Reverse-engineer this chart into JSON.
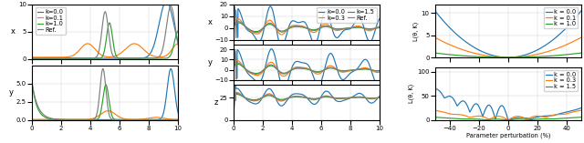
{
  "fig_width": 6.4,
  "fig_height": 1.57,
  "dpi": 100,
  "p1_colors": [
    "#1f77b4",
    "#ff7f0e",
    "#2ca02c",
    "#7f7f7f"
  ],
  "p2_colors": [
    "#1f77b4",
    "#ff7f0e",
    "#2ca02c",
    "#7f7f7f"
  ],
  "p3_colors": [
    "#1f77b4",
    "#ff7f0e",
    "#2ca02c"
  ],
  "p1_legend": [
    "k=0.0",
    "k=0.1",
    "k=1.0",
    "Ref."
  ],
  "p2_legend_top": [
    "k=0.0",
    "k=0.3",
    "k=1.5",
    "Ref."
  ],
  "p3_legend_top": [
    "k = 0.0",
    "k = 0.1",
    "k = 1.0"
  ],
  "p3_legend_bot": [
    "k = 0.0",
    "k = 0.3",
    "k = 1.5"
  ],
  "p3_xlabel": "Parameter perturbation (%)",
  "p3_ylabel": "L(θ, K)"
}
